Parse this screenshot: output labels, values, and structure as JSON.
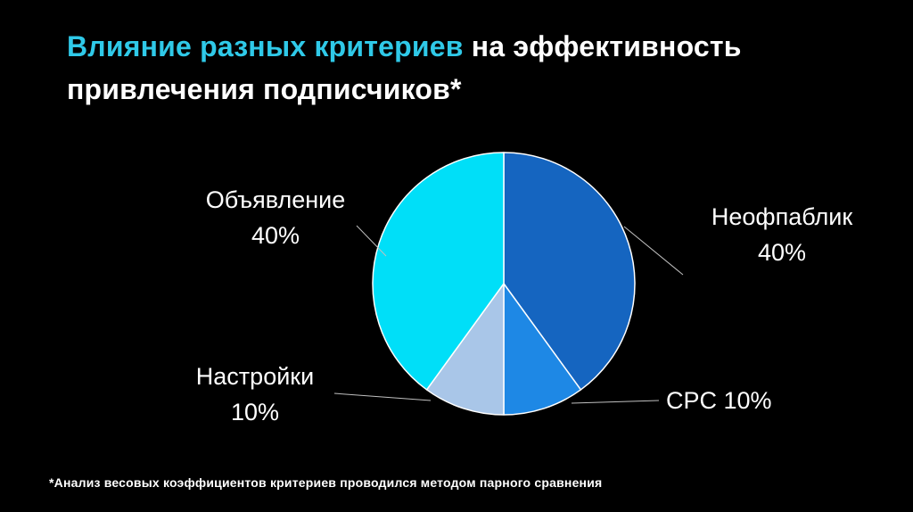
{
  "title": {
    "highlight": "Влияние разных критериев",
    "rest": " на эффективность привлечения подписчиков*"
  },
  "callouts": {
    "obyavlenie": {
      "line1": "Объявление",
      "line2": "40%"
    },
    "neofpablik": {
      "line1": "Неофпаблик",
      "line2": "40%"
    },
    "cpc": {
      "line1": "CPC 10%"
    },
    "nastroyki": {
      "line1": "Настройки",
      "line2": "10%"
    }
  },
  "footnote": "*Анализ весовых коэффициентов критериев проводился методом парного сравнения",
  "colors": {
    "background": "#000000",
    "title_highlight": "#2FC9E8",
    "title_text": "#FFFFFF",
    "label_text": "#FFFFFF",
    "leader_line": "#C0C0C0",
    "slice_border": "#FFFFFF"
  },
  "chart_data": {
    "type": "pie",
    "title": "Влияние разных критериев на эффективность привлечения подписчиков",
    "start_angle_deg": 0,
    "direction": "clockwise",
    "categories": [
      "Неофпаблик",
      "CPC",
      "Настройки",
      "Объявление"
    ],
    "values": [
      40,
      10,
      10,
      40
    ],
    "unit": "%",
    "slices": [
      {
        "id": "neofpablik",
        "label": "Неофпаблик",
        "value": 40,
        "color": "#1565C0"
      },
      {
        "id": "cpc",
        "label": "CPC",
        "value": 10,
        "color": "#1E88E5"
      },
      {
        "id": "nastroyki",
        "label": "Настройки",
        "value": 10,
        "color": "#A9C6E8"
      },
      {
        "id": "obyavlenie",
        "label": "Объявление",
        "value": 40,
        "color": "#00DFF8"
      }
    ],
    "legend": "none",
    "labels": "callouts"
  }
}
